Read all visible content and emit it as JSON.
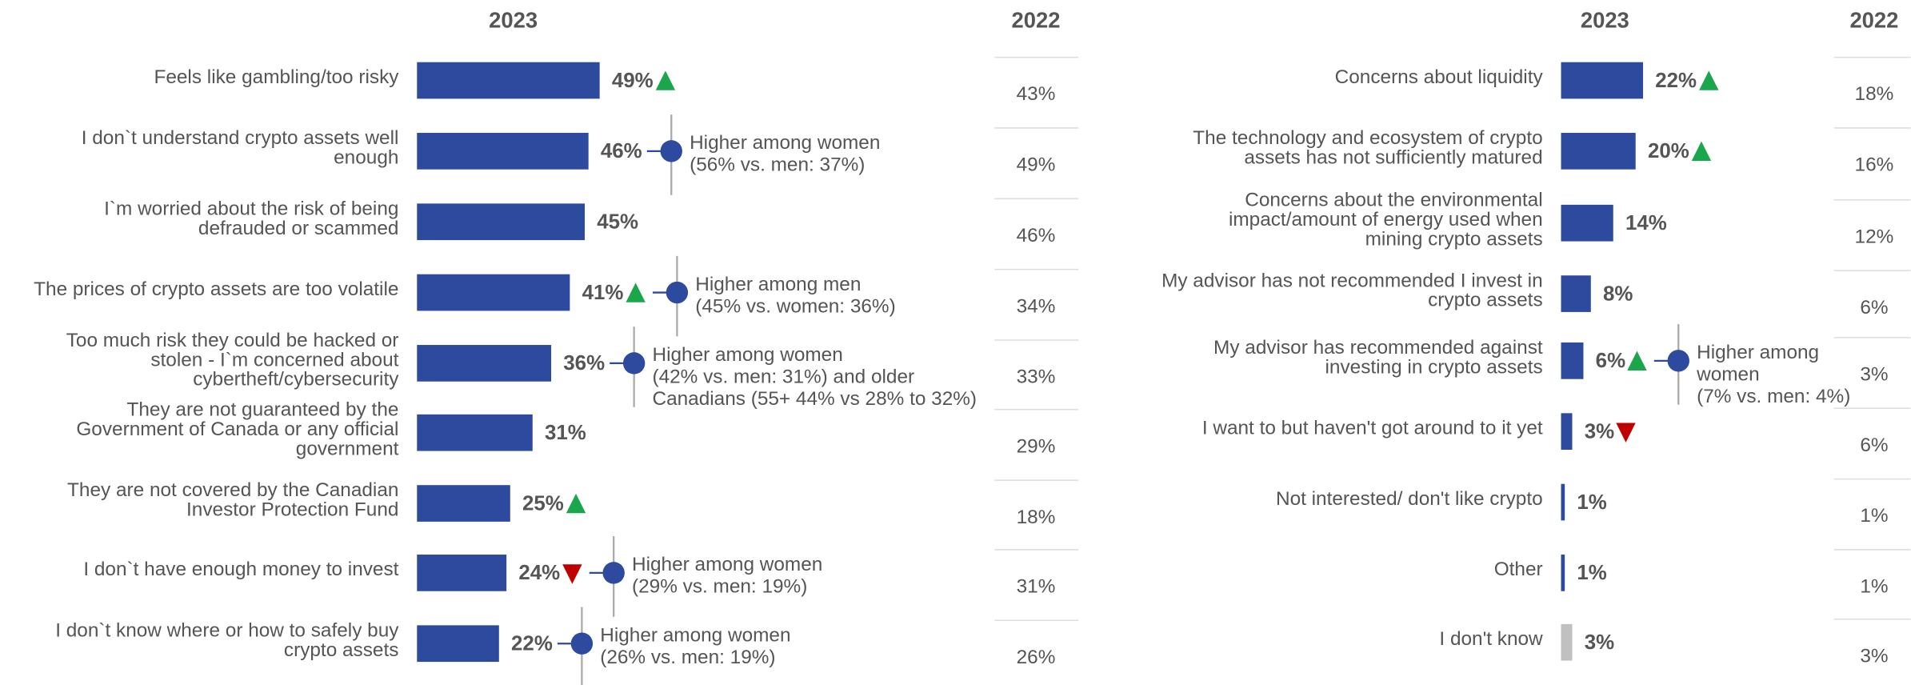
{
  "chart_data": [
    {
      "type": "hbar",
      "column_headers": [
        "2023",
        "2022"
      ],
      "color": "#2e4a9e",
      "categories": [
        [
          "Feels like gambling/too risky"
        ],
        [
          "I don`t understand crypto assets well",
          "enough"
        ],
        [
          "I`m worried about the risk of being",
          "defrauded or scammed"
        ],
        [
          "The prices of crypto assets are too volatile"
        ],
        [
          "Too much risk they could be hacked or",
          "stolen - I`m concerned about",
          "cybertheft/cybersecurity"
        ],
        [
          "They are not guaranteed by the",
          "Government of Canada or any official",
          "government"
        ],
        [
          "They are not covered by the Canadian",
          "Investor Protection Fund"
        ],
        [
          "I don`t have enough money to invest"
        ],
        [
          "I don`t know where or how to safely buy",
          "crypto assets"
        ]
      ],
      "values": [
        49,
        46,
        45,
        41,
        36,
        31,
        25,
        24,
        22
      ],
      "value_labels": [
        "49%",
        "46%",
        "45%",
        "41%",
        "36%",
        "31%",
        "25%",
        "24%",
        "22%"
      ],
      "colors": [
        "#2e4a9e",
        "#2e4a9e",
        "#2e4a9e",
        "#2e4a9e",
        "#2e4a9e",
        "#2e4a9e",
        "#2e4a9e",
        "#2e4a9e",
        "#2e4a9e"
      ],
      "change": [
        "up",
        null,
        null,
        "up",
        null,
        null,
        "up",
        "down",
        null
      ],
      "previous_values": [
        43,
        49,
        46,
        34,
        33,
        29,
        18,
        31,
        26
      ],
      "previous_labels": [
        "43%",
        "49%",
        "46%",
        "34%",
        "33%",
        "29%",
        "18%",
        "31%",
        "26%"
      ],
      "annotations": [
        null,
        [
          "Higher among women",
          "(56% vs. men: 37%)"
        ],
        null,
        [
          "Higher among men",
          "(45% vs. women: 36%)"
        ],
        [
          "Higher among women",
          "(42% vs. men: 31%) and older",
          "Canadians (55+ 44% vs 28% to 32%)"
        ],
        null,
        null,
        [
          "Higher among women",
          "(29% vs. men: 19%)"
        ],
        [
          "Higher among women",
          "(26% vs. men: 19%)"
        ]
      ]
    },
    {
      "type": "hbar",
      "column_headers": [
        "2023",
        "2022"
      ],
      "color": "#2e4a9e",
      "categories": [
        [
          "Concerns about liquidity"
        ],
        [
          "The technology and ecosystem of crypto",
          "assets has not sufficiently matured"
        ],
        [
          "Concerns about the environmental",
          "impact/amount of energy used when",
          "mining crypto assets"
        ],
        [
          "My advisor has not recommended I invest in",
          "crypto assets"
        ],
        [
          "My advisor has recommended against",
          "investing in crypto assets"
        ],
        [
          "I want to but haven't got around to it yet"
        ],
        [
          "Not interested/ don't like crypto"
        ],
        [
          "Other"
        ],
        [
          "I don't know"
        ]
      ],
      "values": [
        22,
        20,
        14,
        8,
        6,
        3,
        1,
        1,
        3
      ],
      "value_labels": [
        "22%",
        "20%",
        "14%",
        "8%",
        "6%",
        "3%",
        "1%",
        "1%",
        "3%"
      ],
      "colors": [
        "#2e4a9e",
        "#2e4a9e",
        "#2e4a9e",
        "#2e4a9e",
        "#2e4a9e",
        "#2e4a9e",
        "#2e4a9e",
        "#2e4a9e",
        "#c0c0c0"
      ],
      "change": [
        "up",
        "up",
        null,
        null,
        "up",
        "down",
        null,
        null,
        null
      ],
      "previous_values": [
        18,
        16,
        12,
        6,
        3,
        6,
        1,
        1,
        3
      ],
      "previous_labels": [
        "18%",
        "16%",
        "12%",
        "6%",
        "3%",
        "6%",
        "1%",
        "1%",
        "3%"
      ],
      "annotations": [
        null,
        null,
        null,
        null,
        [
          "Higher among",
          "women",
          "(7% vs. men: 4%)"
        ],
        null,
        null,
        null,
        null
      ]
    }
  ]
}
